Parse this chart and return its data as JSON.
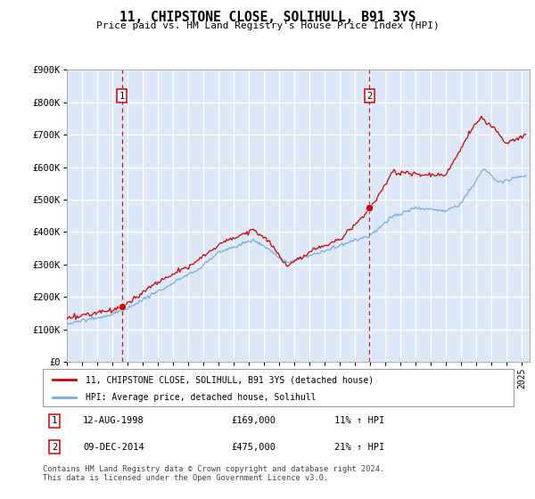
{
  "title": "11, CHIPSTONE CLOSE, SOLIHULL, B91 3YS",
  "subtitle": "Price paid vs. HM Land Registry's House Price Index (HPI)",
  "ylim": [
    0,
    900000
  ],
  "yticks": [
    0,
    100000,
    200000,
    300000,
    400000,
    500000,
    600000,
    700000,
    800000,
    900000
  ],
  "ytick_labels": [
    "£0",
    "£100K",
    "£200K",
    "£300K",
    "£400K",
    "£500K",
    "£600K",
    "£700K",
    "£800K",
    "£900K"
  ],
  "xlim_start": 1995.0,
  "xlim_end": 2025.5,
  "plot_bg_color": "#dce8f8",
  "grid_color": "#ffffff",
  "sale1_date": 1998.617,
  "sale1_price": 169000,
  "sale1_label": "1",
  "sale2_date": 2014.94,
  "sale2_price": 475000,
  "sale2_label": "2",
  "legend_line1": "11, CHIPSTONE CLOSE, SOLIHULL, B91 3YS (detached house)",
  "legend_line2": "HPI: Average price, detached house, Solihull",
  "annotation1": "12-AUG-1998",
  "annotation1_price": "£169,000",
  "annotation1_hpi": "11% ↑ HPI",
  "annotation2": "09-DEC-2014",
  "annotation2_price": "£475,000",
  "annotation2_hpi": "21% ↑ HPI",
  "footer": "Contains HM Land Registry data © Crown copyright and database right 2024.\nThis data is licensed under the Open Government Licence v3.0.",
  "line_color_red": "#cc0000",
  "line_color_blue": "#7aabdb",
  "marker_color_red": "#cc0000",
  "vline_color": "#cc0000"
}
